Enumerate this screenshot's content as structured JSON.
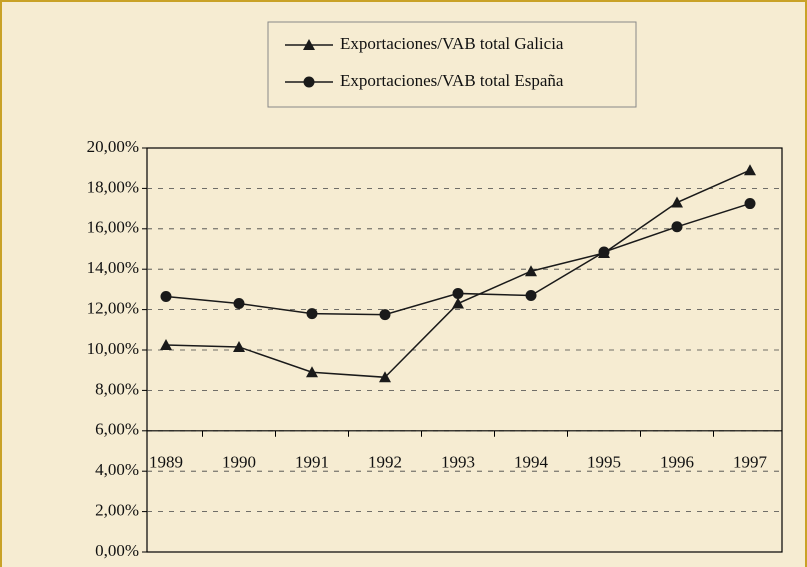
{
  "chart_data": {
    "type": "line",
    "categories": [
      "1989",
      "1990",
      "1991",
      "1992",
      "1993",
      "1994",
      "1995",
      "1996",
      "1997"
    ],
    "series": [
      {
        "name": "Exportaciones/VAB total Galicia",
        "color": "#1a1a1a",
        "marker": "triangle",
        "values": [
          10.25,
          10.15,
          8.9,
          8.65,
          12.3,
          13.9,
          14.8,
          17.3,
          18.9
        ]
      },
      {
        "name": "Exportaciones/VAB total España",
        "color": "#1a1a1a",
        "marker": "circle",
        "values": [
          12.65,
          12.3,
          11.8,
          11.75,
          12.8,
          12.7,
          14.85,
          16.1,
          17.25
        ]
      }
    ],
    "ylim": [
      0,
      20
    ],
    "yticks": [
      {
        "value": 0,
        "label": "0,00%"
      },
      {
        "value": 2,
        "label": "2,00%"
      },
      {
        "value": 4,
        "label": "4,00%"
      },
      {
        "value": 6,
        "label": "6,00%"
      },
      {
        "value": 8,
        "label": "8,00%"
      },
      {
        "value": 10,
        "label": "10,00%"
      },
      {
        "value": 12,
        "label": "12,00%"
      },
      {
        "value": 14,
        "label": "14,00%"
      },
      {
        "value": 16,
        "label": "16,00%"
      },
      {
        "value": 18,
        "label": "18,00%"
      },
      {
        "value": 20,
        "label": "20,00%"
      }
    ],
    "x_axis_crossing": 6,
    "grid": true,
    "legend": "top"
  }
}
